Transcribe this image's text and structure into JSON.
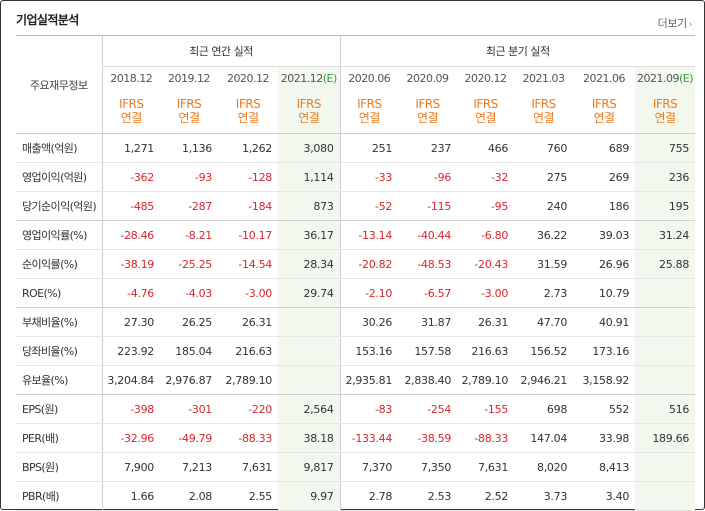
{
  "header": {
    "title": "기업실적분석",
    "more_label": "더보기",
    "more_icon": "chevron-right-icon"
  },
  "table": {
    "corner_label": "주요재무정보",
    "groups": {
      "annual": "최근 연간 실적",
      "quarterly": "최근 분기 실적"
    },
    "periods": [
      "2018.12",
      "2019.12",
      "2020.12",
      "2021.12",
      "2020.06",
      "2020.09",
      "2020.12",
      "2021.03",
      "2021.06",
      "2021.09"
    ],
    "estimate_mark": "(E)",
    "ifrs_line1": "IFRS",
    "ifrs_line2": "연결",
    "rows": [
      {
        "label": "매출액(억원)",
        "values": [
          "1,271",
          "1,136",
          "1,262",
          "3,080",
          "251",
          "237",
          "466",
          "760",
          "689",
          "755"
        ]
      },
      {
        "label": "영업이익(억원)",
        "values": [
          "-362",
          "-93",
          "-128",
          "1,114",
          "-33",
          "-96",
          "-32",
          "275",
          "269",
          "236"
        ]
      },
      {
        "label": "당기순이익(억원)",
        "values": [
          "-485",
          "-287",
          "-184",
          "873",
          "-52",
          "-115",
          "-95",
          "240",
          "186",
          "195"
        ]
      },
      {
        "label": "영업이익률(%)",
        "values": [
          "-28.46",
          "-8.21",
          "-10.17",
          "36.17",
          "-13.14",
          "-40.44",
          "-6.80",
          "36.22",
          "39.03",
          "31.24"
        ]
      },
      {
        "label": "순이익률(%)",
        "values": [
          "-38.19",
          "-25.25",
          "-14.54",
          "28.34",
          "-20.82",
          "-48.53",
          "-20.43",
          "31.59",
          "26.96",
          "25.88"
        ]
      },
      {
        "label": "ROE(%)",
        "values": [
          "-4.76",
          "-4.03",
          "-3.00",
          "29.74",
          "-2.10",
          "-6.57",
          "-3.00",
          "2.73",
          "10.79",
          ""
        ]
      },
      {
        "label": "부채비율(%)",
        "values": [
          "27.30",
          "26.25",
          "26.31",
          "",
          "30.26",
          "31.87",
          "26.31",
          "47.70",
          "40.91",
          ""
        ]
      },
      {
        "label": "당좌비율(%)",
        "values": [
          "223.92",
          "185.04",
          "216.63",
          "",
          "153.16",
          "157.58",
          "216.63",
          "156.52",
          "173.16",
          ""
        ]
      },
      {
        "label": "유보율(%)",
        "values": [
          "3,204.84",
          "2,976.87",
          "2,789.10",
          "",
          "2,935.81",
          "2,838.40",
          "2,789.10",
          "2,946.21",
          "3,158.92",
          ""
        ]
      },
      {
        "label": "EPS(원)",
        "values": [
          "-398",
          "-301",
          "-220",
          "2,564",
          "-83",
          "-254",
          "-155",
          "698",
          "552",
          "516"
        ]
      },
      {
        "label": "PER(배)",
        "values": [
          "-32.96",
          "-49.79",
          "-88.33",
          "38.18",
          "-133.44",
          "-38.59",
          "-88.33",
          "147.04",
          "33.98",
          "189.66"
        ]
      },
      {
        "label": "BPS(원)",
        "values": [
          "7,900",
          "7,213",
          "7,631",
          "9,817",
          "7,370",
          "7,350",
          "7,631",
          "8,020",
          "8,413",
          ""
        ]
      },
      {
        "label": "PBR(배)",
        "values": [
          "1.66",
          "2.08",
          "2.55",
          "9.97",
          "2.78",
          "2.53",
          "2.52",
          "3.73",
          "3.40",
          ""
        ]
      }
    ]
  }
}
